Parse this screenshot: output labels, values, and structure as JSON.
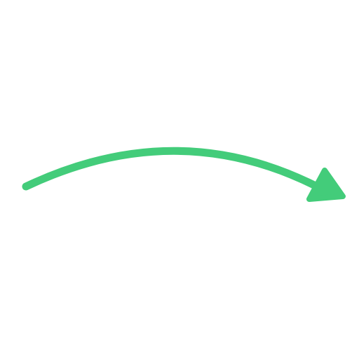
{
  "arrow": {
    "icon": "curved-arrow-right-icon",
    "color": "#43CC7A"
  }
}
